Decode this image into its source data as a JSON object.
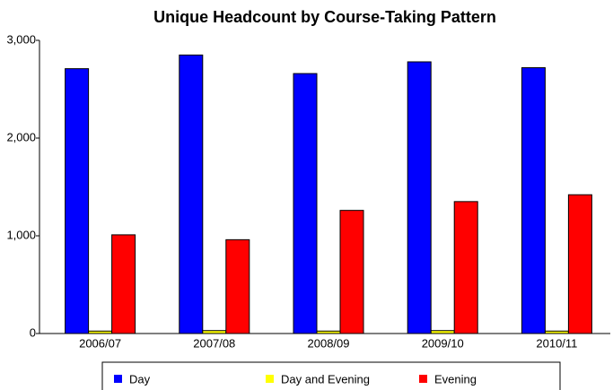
{
  "chart_data": {
    "type": "bar",
    "title": "Unique Headcount by Course-Taking Pattern",
    "categories": [
      "2006/07",
      "2007/08",
      "2008/09",
      "2009/10",
      "2010/11"
    ],
    "series": [
      {
        "name": "Day",
        "color": "#0000ff",
        "values": [
          2710,
          2850,
          2660,
          2780,
          2720
        ]
      },
      {
        "name": "Day and Evening",
        "color": "#ffff00",
        "values": [
          25,
          30,
          25,
          30,
          25
        ]
      },
      {
        "name": "Evening",
        "color": "#ff0000",
        "values": [
          1010,
          960,
          1260,
          1350,
          1420
        ]
      }
    ],
    "ylim": [
      0,
      3000
    ],
    "yticks": [
      0,
      {
        "value": 1000,
        "label": "1,000"
      },
      {
        "value": 2000,
        "label": "2,000"
      },
      {
        "value": 3000,
        "label": "3,000"
      }
    ],
    "grid": false,
    "legend": "bottom"
  }
}
